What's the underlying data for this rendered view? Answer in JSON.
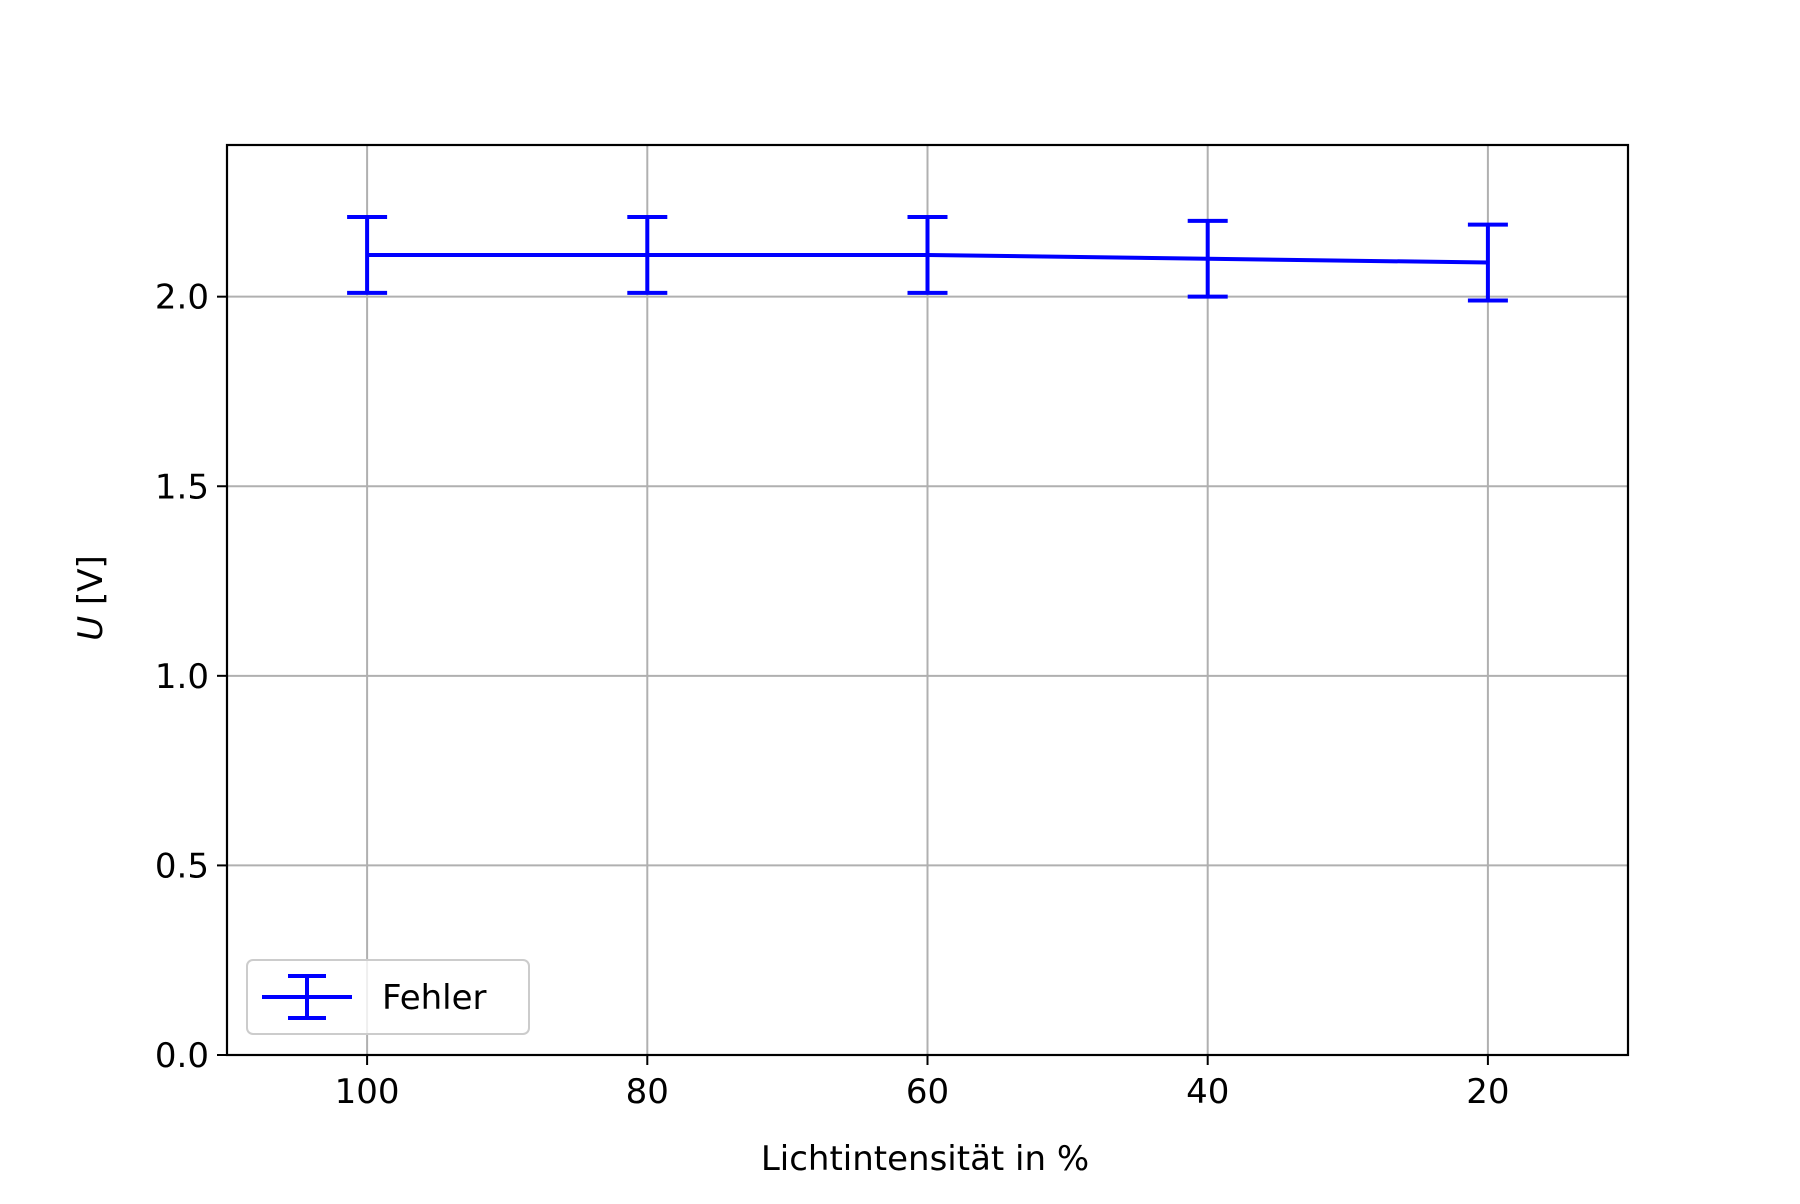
{
  "chart_data": {
    "type": "line",
    "title": "",
    "xlabel": "Lichtintensität in %",
    "ylabel_symbol": "U",
    "ylabel_unit": " [V]",
    "x": [
      100,
      80,
      60,
      40,
      20
    ],
    "x_inverted": true,
    "xlim": [
      110,
      10
    ],
    "ylim": [
      0,
      2.4
    ],
    "xticks": [
      100,
      80,
      60,
      40,
      20
    ],
    "xtick_labels": [
      "100",
      "80",
      "60",
      "40",
      "20"
    ],
    "yticks": [
      0,
      0.5,
      1.0,
      1.5,
      2.0
    ],
    "ytick_labels": [
      "0.0",
      "0.5",
      "1.0",
      "1.5",
      "2.0"
    ],
    "grid": true,
    "legend_position": "lower-left",
    "series": [
      {
        "name": "Fehler",
        "color": "#0000ff",
        "values": [
          2.11,
          2.11,
          2.11,
          2.1,
          2.09
        ],
        "errors": [
          0.1,
          0.1,
          0.1,
          0.1,
          0.1
        ]
      }
    ]
  }
}
